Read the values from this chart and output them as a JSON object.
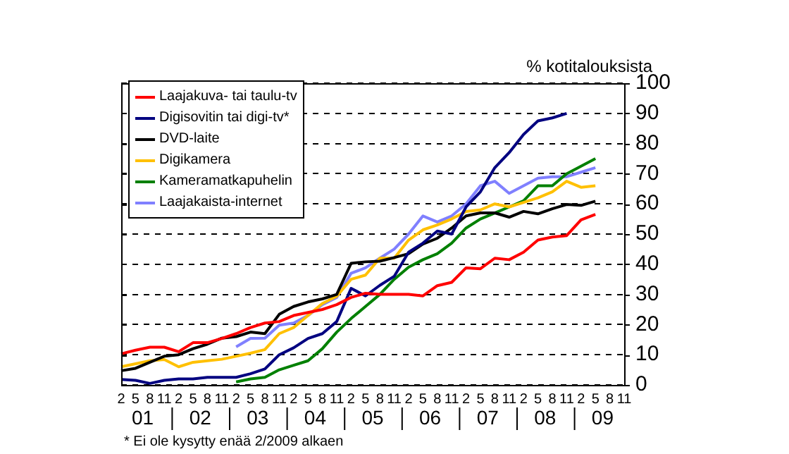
{
  "chart_data": {
    "type": "line",
    "ylabel": "% kotitalouksista",
    "categories": [
      "2",
      "5",
      "8",
      "11",
      "2",
      "5",
      "8",
      "11",
      "2",
      "5",
      "8",
      "11",
      "2",
      "5",
      "8",
      "11",
      "2",
      "5",
      "8",
      "11",
      "2",
      "5",
      "8",
      "11",
      "2",
      "5",
      "8",
      "11",
      "2",
      "5",
      "8",
      "11",
      "2",
      "5",
      "8",
      "11"
    ],
    "series": [
      {
        "name": "Laajakuva- tai taulu-tv",
        "color": "#ff0000",
        "values": [
          10.3,
          11.5,
          12.5,
          12.5,
          11,
          14,
          14,
          15.4,
          17,
          19,
          20.5,
          21,
          23,
          24,
          25,
          26.6,
          29,
          30.4,
          30,
          30,
          30,
          29.5,
          32.9,
          34,
          38.8,
          38.5,
          42,
          41.5,
          44,
          48,
          49,
          49.5,
          54.7,
          56.5,
          null,
          null
        ]
      },
      {
        "name": "Digisovitin tai digi-tv*",
        "color": "#000080",
        "values": [
          1.8,
          1.5,
          0.5,
          1.5,
          2,
          2,
          2.5,
          2.5,
          2.5,
          3.7,
          5.3,
          10,
          12.3,
          15.4,
          17,
          21,
          32,
          29.5,
          33,
          36,
          44,
          47,
          51,
          50,
          59,
          64,
          72,
          77,
          83,
          87.5,
          88.5,
          90,
          null,
          null,
          null,
          null
        ]
      },
      {
        "name": "DVD-laite",
        "color": "#000000",
        "values": [
          4.7,
          5.5,
          7.5,
          9.5,
          10,
          12,
          13.5,
          15.5,
          16,
          17.5,
          17,
          23.4,
          26,
          27.5,
          28.5,
          30,
          40.3,
          40.8,
          41,
          42.2,
          43.5,
          46.7,
          48.6,
          52,
          56,
          57,
          57,
          55.6,
          57.5,
          56.7,
          58.4,
          59.8,
          59.5,
          60.9,
          null,
          null
        ]
      },
      {
        "name": "Digikamera",
        "color": "#ffc000",
        "values": [
          6,
          7,
          8,
          8.4,
          6,
          7.5,
          8,
          8.5,
          9.5,
          10.5,
          11.7,
          17,
          19,
          23,
          27,
          29.4,
          35,
          36.4,
          42,
          42,
          48,
          51.4,
          53,
          55,
          57.5,
          58,
          60,
          59,
          60.5,
          62,
          64,
          67.5,
          65.5,
          66,
          null,
          null
        ]
      },
      {
        "name": "Kameramatkapuhelin",
        "color": "#008000",
        "values": [
          null,
          null,
          null,
          null,
          null,
          null,
          null,
          null,
          1,
          2,
          2.5,
          5,
          6.5,
          8,
          12,
          17.5,
          22,
          26,
          30,
          35,
          39,
          41.5,
          43.5,
          47,
          52,
          55,
          57,
          59,
          61,
          66,
          66,
          70,
          72.5,
          75,
          null,
          null
        ]
      },
      {
        "name": "Laajakaista-internet",
        "color": "#8080ff",
        "values": [
          null,
          null,
          null,
          null,
          null,
          null,
          null,
          null,
          12.6,
          15.4,
          15.5,
          19.8,
          20.5,
          23,
          26.6,
          29,
          37,
          38.8,
          42,
          45,
          50,
          56,
          54,
          56,
          60,
          66,
          67.5,
          63.5,
          66,
          68.5,
          69,
          69,
          70.5,
          72,
          null,
          null
        ]
      }
    ],
    "ylim": [
      0,
      100
    ],
    "yticks": [
      0,
      10,
      20,
      30,
      40,
      50,
      60,
      70,
      80,
      90,
      100
    ],
    "grid": "y",
    "legend": "top left",
    "marker": "none",
    "line_style": "solid",
    "annotations": [
      "01",
      "02",
      "03",
      "04",
      "05",
      "06",
      "07",
      "08",
      "09",
      "* Ei ole kysytty enää 2/2009 alkaen"
    ]
  }
}
